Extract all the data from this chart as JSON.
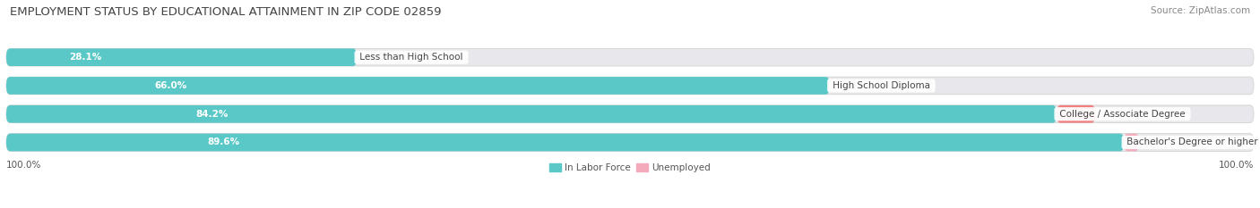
{
  "title": "EMPLOYMENT STATUS BY EDUCATIONAL ATTAINMENT IN ZIP CODE 02859",
  "source": "Source: ZipAtlas.com",
  "categories": [
    "Less than High School",
    "High School Diploma",
    "College / Associate Degree",
    "Bachelor's Degree or higher"
  ],
  "labor_force_pct": [
    28.1,
    66.0,
    84.2,
    89.6
  ],
  "unemployed_pct": [
    0.0,
    0.0,
    3.1,
    1.2
  ],
  "labor_force_color": "#5BC8C8",
  "unemployed_color": "#F08080",
  "unemployed_color_low": "#F4AABB",
  "bar_bg_color": "#E8E8EC",
  "bar_height": 0.62,
  "total_width": 100.0,
  "left_label": "100.0%",
  "right_label": "100.0%",
  "legend_labor": "In Labor Force",
  "legend_unemployed": "Unemployed",
  "title_fontsize": 9.5,
  "source_fontsize": 7.5,
  "label_fontsize": 7.5,
  "bar_label_fontsize": 7.5,
  "category_fontsize": 7.5,
  "background_color": "#FFFFFF",
  "fig_width": 14.06,
  "fig_height": 2.33
}
